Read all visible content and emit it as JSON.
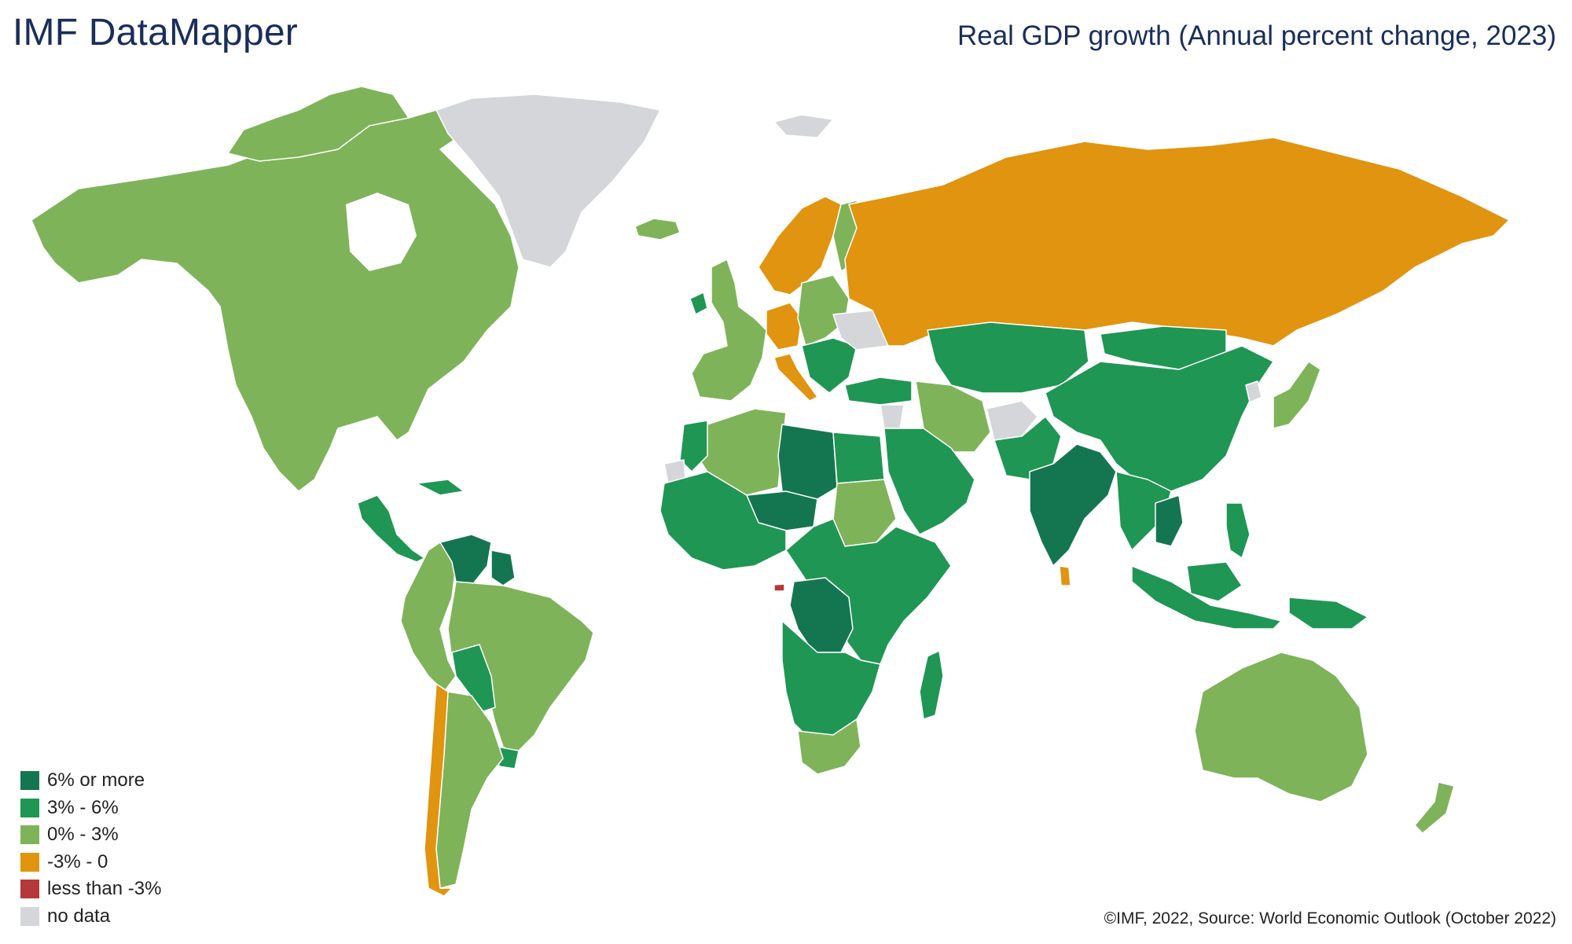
{
  "header": {
    "brand": "IMF DataMapper",
    "title": "Real GDP growth (Annual percent change, 2023)"
  },
  "legend": [
    {
      "label": "6% or more",
      "color": "#147650"
    },
    {
      "label": "3% - 6%",
      "color": "#1f9654"
    },
    {
      "label": "0% - 3%",
      "color": "#7fb35a"
    },
    {
      "label": "-3% - 0",
      "color": "#e0940f"
    },
    {
      "label": "less than -3%",
      "color": "#b5383a"
    },
    {
      "label": "no data",
      "color": "#d5d6d9"
    }
  ],
  "footer": {
    "credit": "©IMF, 2022, Source: World Economic Outlook (October 2022)"
  },
  "map": {
    "regions": [
      {
        "name": "canada-usa-mexico",
        "category": "0% - 3%"
      },
      {
        "name": "greenland",
        "category": "no data"
      },
      {
        "name": "iceland",
        "category": "0% - 3%"
      },
      {
        "name": "svalbard",
        "category": "no data"
      },
      {
        "name": "central-america",
        "category": "3% - 6%"
      },
      {
        "name": "caribbean",
        "category": "3% - 6%"
      },
      {
        "name": "venezuela",
        "category": "6% or more"
      },
      {
        "name": "guyana-suriname",
        "category": "6% or more"
      },
      {
        "name": "colombia-ecuador-peru",
        "category": "0% - 3%"
      },
      {
        "name": "brazil",
        "category": "0% - 3%"
      },
      {
        "name": "bolivia-paraguay",
        "category": "3% - 6%"
      },
      {
        "name": "uruguay",
        "category": "3% - 6%"
      },
      {
        "name": "argentina",
        "category": "0% - 3%"
      },
      {
        "name": "chile",
        "category": "-3% - 0"
      },
      {
        "name": "ireland",
        "category": "3% - 6%"
      },
      {
        "name": "uk-france-iberia",
        "category": "0% - 3%"
      },
      {
        "name": "germany",
        "category": "-3% - 0"
      },
      {
        "name": "italy",
        "category": "-3% - 0"
      },
      {
        "name": "sweden-norway",
        "category": "-3% - 0"
      },
      {
        "name": "finland",
        "category": "0% - 3%"
      },
      {
        "name": "central-eastern-europe",
        "category": "0% - 3%"
      },
      {
        "name": "balkans",
        "category": "3% - 6%"
      },
      {
        "name": "ukraine-belarus",
        "category": "no data"
      },
      {
        "name": "russia",
        "category": "-3% - 0"
      },
      {
        "name": "turkey",
        "category": "3% - 6%"
      },
      {
        "name": "central-asia",
        "category": "3% - 6%"
      },
      {
        "name": "china",
        "category": "3% - 6%"
      },
      {
        "name": "mongolia",
        "category": "3% - 6%"
      },
      {
        "name": "north-korea",
        "category": "no data"
      },
      {
        "name": "japan-korea",
        "category": "0% - 3%"
      },
      {
        "name": "iran-caucasus",
        "category": "0% - 3%"
      },
      {
        "name": "afghanistan",
        "category": "no data"
      },
      {
        "name": "syria-lebanon",
        "category": "no data"
      },
      {
        "name": "arabian-peninsula",
        "category": "3% - 6%"
      },
      {
        "name": "pakistan-nepal",
        "category": "3% - 6%"
      },
      {
        "name": "india-bangladesh",
        "category": "6% or more"
      },
      {
        "name": "sri-lanka",
        "category": "-3% - 0"
      },
      {
        "name": "southeast-asia",
        "category": "3% - 6%"
      },
      {
        "name": "vietnam-cambodia",
        "category": "6% or more"
      },
      {
        "name": "indonesia-malaysia",
        "category": "3% - 6%"
      },
      {
        "name": "philippines",
        "category": "3% - 6%"
      },
      {
        "name": "papua-new-guinea",
        "category": "3% - 6%"
      },
      {
        "name": "australia",
        "category": "0% - 3%"
      },
      {
        "name": "new-zealand",
        "category": "0% - 3%"
      },
      {
        "name": "maghreb",
        "category": "0% - 3%"
      },
      {
        "name": "morocco",
        "category": "3% - 6%"
      },
      {
        "name": "western-sahara",
        "category": "no data"
      },
      {
        "name": "libya",
        "category": "6% or more"
      },
      {
        "name": "egypt",
        "category": "3% - 6%"
      },
      {
        "name": "sudan",
        "category": "0% - 3%"
      },
      {
        "name": "niger-sahel",
        "category": "6% or more"
      },
      {
        "name": "west-africa",
        "category": "3% - 6%"
      },
      {
        "name": "central-east-africa",
        "category": "3% - 6%"
      },
      {
        "name": "dr-congo",
        "category": "6% or more"
      },
      {
        "name": "equatorial-guinea",
        "category": "less than -3%"
      },
      {
        "name": "southern-africa",
        "category": "3% - 6%"
      },
      {
        "name": "south-africa",
        "category": "0% - 3%"
      },
      {
        "name": "madagascar",
        "category": "3% - 6%"
      }
    ]
  }
}
